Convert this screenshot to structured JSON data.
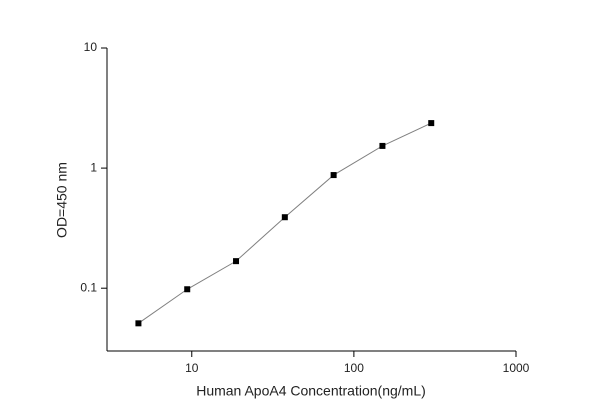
{
  "chart_data": {
    "type": "line",
    "xlabel": "Human ApoA4  Concentration(ng/mL)",
    "ylabel": "OD=450 nm",
    "x": [
      4.6875,
      9.375,
      18.75,
      37.5,
      75,
      150,
      300
    ],
    "values": [
      0.051,
      0.098,
      0.168,
      0.39,
      0.875,
      1.53,
      2.37
    ],
    "marker_color": "#000000",
    "line_color": "#808080",
    "xscale": "log",
    "yscale": "log",
    "xlim": [
      3,
      1000
    ],
    "xticks": [
      10,
      100,
      1000
    ],
    "ylim": [
      0.03,
      10
    ],
    "yticks": [
      {
        "value": 0.1,
        "label": "0.1"
      },
      1,
      10
    ]
  }
}
